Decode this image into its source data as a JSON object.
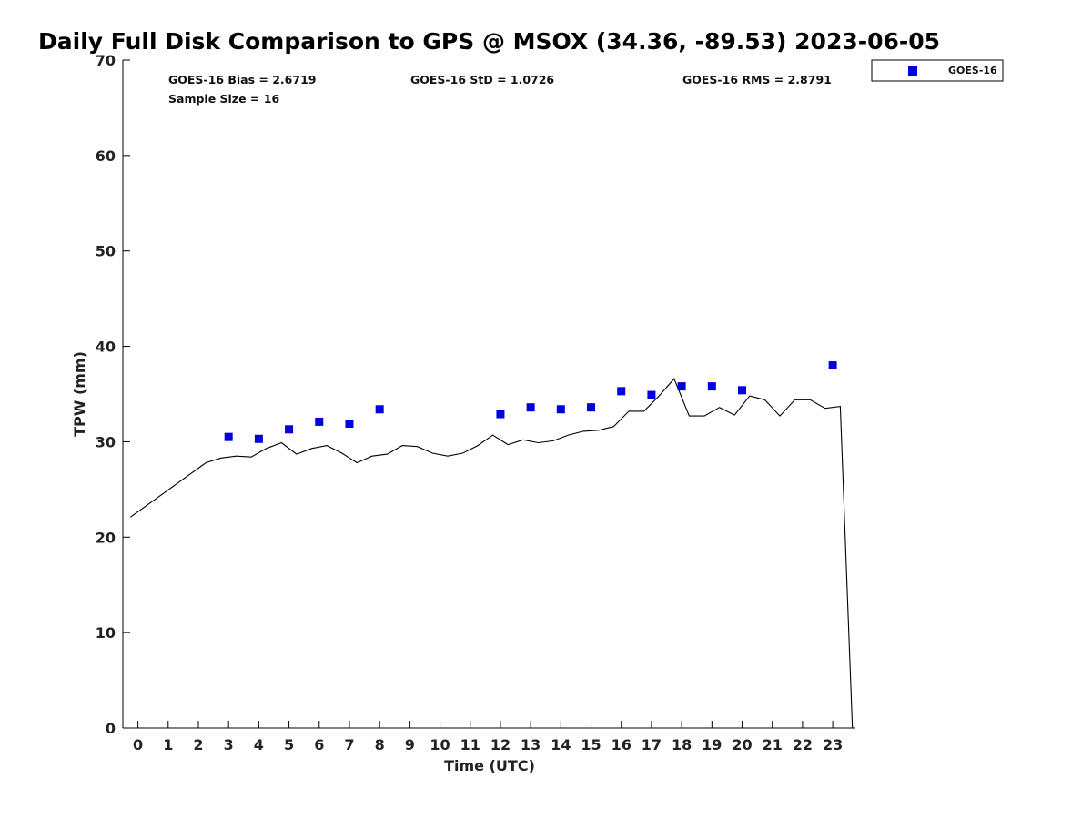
{
  "chart_data": {
    "type": "scatter",
    "title": "Daily Full Disk Comparison to GPS @ MSOX (34.36, -89.53) 2023-06-05",
    "xlabel": "Time (UTC)",
    "ylabel": "TPW (mm)",
    "xlim": [
      -0.5,
      23.75
    ],
    "ylim": [
      0,
      70
    ],
    "x_ticks": [
      "0",
      "1",
      "2",
      "3",
      "4",
      "5",
      "6",
      "7",
      "8",
      "9",
      "10",
      "11",
      "12",
      "13",
      "14",
      "15",
      "16",
      "17",
      "18",
      "19",
      "20",
      "21",
      "22",
      "23"
    ],
    "y_ticks": [
      "0",
      "10",
      "20",
      "30",
      "40",
      "50",
      "60",
      "70"
    ],
    "grid": false,
    "legend_position": "top-right, outside plot",
    "stats": {
      "bias": "GOES-16 Bias = 2.6719",
      "std": "GOES-16 StD = 1.0726",
      "rms": "GOES-16 RMS = 2.8791",
      "sample": "Sample Size = 16"
    },
    "series": [
      {
        "name": "GOES-16",
        "kind": "markers",
        "color": "#0000dd",
        "x": [
          3,
          4,
          5,
          6,
          7,
          8,
          12,
          13,
          14,
          15,
          16,
          17,
          18,
          19,
          20,
          23
        ],
        "y": [
          30.5,
          30.3,
          31.3,
          32.1,
          31.9,
          33.4,
          32.9,
          33.6,
          33.4,
          33.6,
          35.3,
          34.9,
          35.8,
          35.8,
          35.4,
          38.0
        ]
      },
      {
        "kind": "line",
        "color": "#000000",
        "x": [
          -0.25,
          2.25,
          2.75,
          3.25,
          3.75,
          4.25,
          4.75,
          5.25,
          5.75,
          6.25,
          6.75,
          7.25,
          7.75,
          8.25,
          8.75,
          9.25,
          9.75,
          10.25,
          10.75,
          11.25,
          11.75,
          12.25,
          12.75,
          13.25,
          13.75,
          14.25,
          14.75,
          15.25,
          15.75,
          16.25,
          16.75,
          17.25,
          17.75,
          18.25,
          18.75,
          19.25,
          19.75,
          20.25,
          20.75,
          21.25,
          21.75,
          22.25,
          22.75,
          23.25,
          23.65
        ],
        "y": [
          22.1,
          27.8,
          28.3,
          28.5,
          28.4,
          29.3,
          29.9,
          28.7,
          29.3,
          29.6,
          28.8,
          27.8,
          28.5,
          28.7,
          29.6,
          29.5,
          28.8,
          28.5,
          28.8,
          29.6,
          30.7,
          29.7,
          30.2,
          29.9,
          30.1,
          30.7,
          31.1,
          31.2,
          31.6,
          33.2,
          33.2,
          34.8,
          36.6,
          32.7,
          32.7,
          33.6,
          32.8,
          34.8,
          34.4,
          32.7,
          34.4,
          34.4,
          33.5,
          33.7,
          0.0
        ]
      }
    ]
  }
}
